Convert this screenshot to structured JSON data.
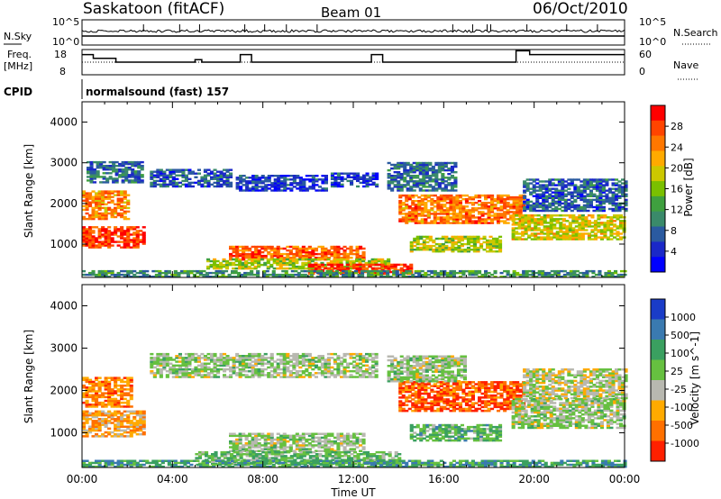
{
  "header": {
    "station": "Saskatoon (fitACF)",
    "beam": "Beam 01",
    "date": "06/Oct/2010"
  },
  "panels_top": {
    "nsky_label": "N.Sky",
    "nsky_ticks": [
      "10^5",
      "10^0"
    ],
    "nsearch_label": "N.Search",
    "nsearch_ticks": [
      "10^5",
      "10^0"
    ],
    "freq_label_1": "Freq.",
    "freq_label_2": "[MHz]",
    "freq_ticks": [
      "18",
      "8"
    ],
    "nave_ticks": [
      "60",
      "0"
    ],
    "nave_label": "Nave",
    "cpid_label": "CPID",
    "cpid_value": "normalsound (fast) 157"
  },
  "chart_data": [
    {
      "type": "heatmap",
      "name": "power",
      "ylabel": "Slant Range [km]",
      "yticks": [
        "4000",
        "3000",
        "2000",
        "1000"
      ],
      "ylim": [
        180,
        4500
      ],
      "xticks": [
        "00:00",
        "04:00",
        "08:00",
        "12:00",
        "16:00",
        "20:00",
        "00:00"
      ],
      "xlim_hours": [
        0,
        24
      ],
      "colorbar_label": "Power [dB]",
      "colorbar_ticks": [
        "28",
        "24",
        "20",
        "16",
        "12",
        "8",
        "4"
      ],
      "colorbar_colors": [
        "#ff0000",
        "#ff4400",
        "#ff7700",
        "#ffaa00",
        "#ccc800",
        "#7ac000",
        "#3fa03f",
        "#3a8a6a",
        "#2a5aa0",
        "#1a28c8",
        "#0000ff"
      ],
      "echo_bands": [
        {
          "t0": 0.0,
          "t1": 2.8,
          "r0": 900,
          "r1": 1400,
          "level": 0.88
        },
        {
          "t0": 0.0,
          "t1": 2.0,
          "r0": 1600,
          "r1": 2300,
          "level": 0.75
        },
        {
          "t0": 0.2,
          "t1": 2.6,
          "r0": 2500,
          "r1": 3000,
          "level": 0.25
        },
        {
          "t0": 3.0,
          "t1": 6.6,
          "r0": 2400,
          "r1": 2850,
          "level": 0.2
        },
        {
          "t0": 6.8,
          "t1": 10.8,
          "r0": 2300,
          "r1": 2700,
          "level": 0.15
        },
        {
          "t0": 11.0,
          "t1": 13.0,
          "r0": 2400,
          "r1": 2750,
          "level": 0.15
        },
        {
          "t0": 6.5,
          "t1": 12.5,
          "r0": 600,
          "r1": 950,
          "level": 0.82
        },
        {
          "t0": 5.5,
          "t1": 13.5,
          "r0": 380,
          "r1": 650,
          "level": 0.55
        },
        {
          "t0": 10.0,
          "t1": 14.5,
          "r0": 250,
          "r1": 500,
          "level": 0.9
        },
        {
          "t0": 14.0,
          "t1": 19.5,
          "r0": 1500,
          "r1": 2200,
          "level": 0.78
        },
        {
          "t0": 13.5,
          "t1": 16.5,
          "r0": 2300,
          "r1": 3000,
          "level": 0.25
        },
        {
          "t0": 14.5,
          "t1": 18.5,
          "r0": 800,
          "r1": 1200,
          "level": 0.55
        },
        {
          "t0": 19.0,
          "t1": 24.0,
          "r0": 1100,
          "r1": 1700,
          "level": 0.6
        },
        {
          "t0": 19.5,
          "t1": 24.0,
          "r0": 1800,
          "r1": 2600,
          "level": 0.22
        },
        {
          "t0": 0.0,
          "t1": 24.0,
          "r0": 180,
          "r1": 350,
          "level": 0.35
        }
      ]
    },
    {
      "type": "heatmap",
      "name": "velocity",
      "ylabel": "Slant Range [km]",
      "yticks": [
        "4000",
        "3000",
        "2000",
        "1000"
      ],
      "ylim": [
        180,
        4500
      ],
      "xticks": [
        "00:00",
        "04:00",
        "08:00",
        "12:00",
        "16:00",
        "20:00",
        "00:00"
      ],
      "xlabel": "Time UT",
      "xlim_hours": [
        0,
        24
      ],
      "colorbar_label": "Velocity [m s^-1]",
      "colorbar_ticks": [
        "1000",
        "500",
        "100",
        "25",
        "-25",
        "-100",
        "-500",
        "-1000"
      ],
      "colorbar_colors": [
        "#1a3cc8",
        "#3a7ab0",
        "#3aa060",
        "#66c040",
        "#b8b8b0",
        "#ffaa00",
        "#ff7000",
        "#ff2000"
      ],
      "echo_bands": [
        {
          "t0": 0.0,
          "t1": 2.8,
          "r0": 900,
          "r1": 1500,
          "level": 0.3
        },
        {
          "t0": 0.0,
          "t1": 2.2,
          "r0": 1600,
          "r1": 2300,
          "level": 0.22
        },
        {
          "t0": 3.0,
          "t1": 13.0,
          "r0": 2300,
          "r1": 2850,
          "level": 0.5
        },
        {
          "t0": 6.5,
          "t1": 12.5,
          "r0": 550,
          "r1": 1000,
          "level": 0.5
        },
        {
          "t0": 5.0,
          "t1": 14.0,
          "r0": 250,
          "r1": 550,
          "level": 0.6
        },
        {
          "t0": 14.0,
          "t1": 19.5,
          "r0": 1500,
          "r1": 2200,
          "level": 0.15
        },
        {
          "t0": 13.5,
          "t1": 17.0,
          "r0": 2200,
          "r1": 2800,
          "level": 0.5
        },
        {
          "t0": 14.5,
          "t1": 18.5,
          "r0": 800,
          "r1": 1200,
          "level": 0.62
        },
        {
          "t0": 19.0,
          "t1": 24.0,
          "r0": 1100,
          "r1": 1800,
          "level": 0.5
        },
        {
          "t0": 19.5,
          "t1": 24.0,
          "r0": 1800,
          "r1": 2500,
          "level": 0.45
        },
        {
          "t0": 0.0,
          "t1": 24.0,
          "r0": 180,
          "r1": 350,
          "level": 0.7
        }
      ]
    },
    {
      "type": "line",
      "name": "frequency",
      "ylim": [
        8,
        18
      ],
      "x_hours": [
        0,
        0.5,
        0.5,
        1.5,
        1.5,
        5.0,
        5.0,
        5.3,
        5.3,
        7.0,
        7.0,
        7.5,
        7.5,
        12.8,
        12.8,
        13.3,
        13.3,
        19.2,
        19.2,
        19.8,
        19.8,
        24
      ],
      "values": [
        16,
        16,
        14.5,
        14.5,
        13,
        13,
        14,
        14,
        13,
        13,
        16,
        16,
        13,
        13,
        16,
        16,
        13,
        13,
        17.5,
        17.5,
        16,
        16
      ]
    }
  ]
}
